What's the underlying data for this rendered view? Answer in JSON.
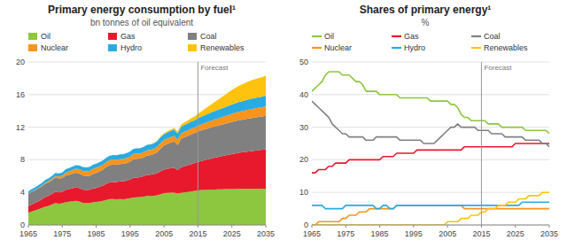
{
  "chart_data": [
    {
      "type": "area",
      "stacked": true,
      "title": "Primary energy consumption by fuel¹",
      "subtitle": "bn tonnes of oil equivalent",
      "x": [
        1965,
        1966,
        1967,
        1968,
        1969,
        1970,
        1971,
        1972,
        1973,
        1974,
        1975,
        1976,
        1977,
        1978,
        1979,
        1980,
        1981,
        1982,
        1983,
        1984,
        1985,
        1986,
        1987,
        1988,
        1989,
        1990,
        1991,
        1992,
        1993,
        1994,
        1995,
        1996,
        1997,
        1998,
        1999,
        2000,
        2001,
        2002,
        2003,
        2004,
        2005,
        2006,
        2007,
        2008,
        2009,
        2010,
        2011,
        2012,
        2013,
        2014,
        2015,
        2016,
        2017,
        2018,
        2019,
        2020,
        2021,
        2022,
        2023,
        2024,
        2025,
        2026,
        2027,
        2028,
        2029,
        2030,
        2031,
        2032,
        2033,
        2034,
        2035
      ],
      "series": [
        {
          "name": "Oil",
          "color": "#8dc63f",
          "values": [
            1.5,
            1.65,
            1.78,
            1.92,
            2.08,
            2.25,
            2.35,
            2.52,
            2.68,
            2.6,
            2.65,
            2.8,
            2.85,
            2.9,
            2.95,
            2.88,
            2.72,
            2.68,
            2.7,
            2.78,
            2.82,
            2.88,
            2.95,
            3.08,
            3.18,
            3.18,
            3.15,
            3.18,
            3.16,
            3.22,
            3.28,
            3.38,
            3.4,
            3.42,
            3.48,
            3.56,
            3.55,
            3.58,
            3.65,
            3.78,
            3.9,
            3.95,
            3.98,
            3.98,
            3.85,
            3.95,
            4.0,
            4.05,
            4.1,
            4.18,
            4.25,
            4.28,
            4.3,
            4.32,
            4.34,
            4.36,
            4.37,
            4.38,
            4.39,
            4.4,
            4.4,
            4.41,
            4.42,
            4.42,
            4.43,
            4.43,
            4.43,
            4.44,
            4.44,
            4.44,
            4.45
          ]
        },
        {
          "name": "Gas",
          "color": "#e8192c",
          "values": [
            0.82,
            0.88,
            0.94,
            1.0,
            1.08,
            1.18,
            1.25,
            1.32,
            1.4,
            1.4,
            1.42,
            1.52,
            1.55,
            1.6,
            1.65,
            1.65,
            1.62,
            1.6,
            1.62,
            1.68,
            1.72,
            1.8,
            1.88,
            1.98,
            2.05,
            2.08,
            2.12,
            2.16,
            2.18,
            2.22,
            2.28,
            2.4,
            2.42,
            2.44,
            2.52,
            2.58,
            2.62,
            2.68,
            2.72,
            2.82,
            2.9,
            2.95,
            2.98,
            3.02,
            2.9,
            3.15,
            3.2,
            3.28,
            3.35,
            3.42,
            3.5,
            3.58,
            3.66,
            3.74,
            3.82,
            3.9,
            3.98,
            4.06,
            4.14,
            4.22,
            4.3,
            4.38,
            4.45,
            4.5,
            4.55,
            4.6,
            4.65,
            4.7,
            4.75,
            4.8,
            4.85
          ]
        },
        {
          "name": "Coal",
          "color": "#808080",
          "values": [
            1.52,
            1.55,
            1.55,
            1.58,
            1.6,
            1.65,
            1.65,
            1.68,
            1.75,
            1.72,
            1.68,
            1.75,
            1.75,
            1.78,
            1.8,
            1.8,
            1.75,
            1.72,
            1.72,
            1.8,
            1.85,
            1.9,
            1.95,
            2.05,
            2.1,
            2.15,
            2.1,
            2.12,
            2.15,
            2.18,
            2.22,
            2.3,
            2.3,
            2.28,
            2.3,
            2.38,
            2.4,
            2.45,
            2.58,
            2.78,
            2.95,
            3.05,
            3.15,
            3.25,
            3.05,
            3.45,
            3.55,
            3.6,
            3.68,
            3.68,
            3.72,
            3.75,
            3.78,
            3.8,
            3.82,
            3.84,
            3.86,
            3.88,
            3.9,
            3.92,
            3.94,
            3.96,
            3.98,
            4.0,
            4.02,
            4.04,
            4.05,
            4.06,
            4.07,
            4.08,
            4.1
          ]
        },
        {
          "name": "Nuclear",
          "color": "#f7941d",
          "values": [
            0.01,
            0.02,
            0.04,
            0.06,
            0.08,
            0.1,
            0.12,
            0.15,
            0.18,
            0.22,
            0.28,
            0.35,
            0.4,
            0.45,
            0.5,
            0.52,
            0.55,
            0.58,
            0.6,
            0.62,
            0.62,
            0.62,
            0.62,
            0.62,
            0.62,
            0.62,
            0.62,
            0.62,
            0.62,
            0.62,
            0.62,
            0.65,
            0.65,
            0.65,
            0.65,
            0.65,
            0.65,
            0.65,
            0.65,
            0.68,
            0.68,
            0.68,
            0.68,
            0.68,
            0.65,
            0.68,
            0.68,
            0.68,
            0.68,
            0.68,
            0.7,
            0.73,
            0.76,
            0.79,
            0.82,
            0.85,
            0.88,
            0.9,
            0.93,
            0.96,
            0.99,
            1.02,
            1.04,
            1.06,
            1.08,
            1.1,
            1.12,
            1.13,
            1.14,
            1.15,
            1.16
          ]
        },
        {
          "name": "Hydro",
          "color": "#29abe2",
          "values": [
            0.28,
            0.3,
            0.31,
            0.32,
            0.33,
            0.35,
            0.36,
            0.37,
            0.38,
            0.38,
            0.4,
            0.42,
            0.43,
            0.44,
            0.45,
            0.46,
            0.47,
            0.48,
            0.49,
            0.5,
            0.51,
            0.52,
            0.53,
            0.54,
            0.55,
            0.56,
            0.57,
            0.58,
            0.58,
            0.6,
            0.61,
            0.62,
            0.63,
            0.64,
            0.65,
            0.66,
            0.67,
            0.68,
            0.7,
            0.72,
            0.72,
            0.74,
            0.76,
            0.78,
            0.78,
            0.82,
            0.84,
            0.86,
            0.88,
            0.9,
            0.92,
            0.95,
            0.98,
            1.0,
            1.02,
            1.04,
            1.06,
            1.08,
            1.1,
            1.12,
            1.14,
            1.16,
            1.18,
            1.2,
            1.22,
            1.24,
            1.26,
            1.27,
            1.28,
            1.29,
            1.3
          ]
        },
        {
          "name": "Renewables",
          "color": "#ffc20e",
          "values": [
            0.0,
            0.0,
            0.0,
            0.0,
            0.0,
            0.0,
            0.0,
            0.0,
            0.0,
            0.0,
            0.0,
            0.0,
            0.0,
            0.0,
            0.0,
            0.0,
            0.0,
            0.0,
            0.0,
            0.0,
            0.0,
            0.0,
            0.0,
            0.0,
            0.0,
            0.0,
            0.0,
            0.0,
            0.0,
            0.0,
            0.0,
            0.0,
            0.0,
            0.0,
            0.0,
            0.02,
            0.03,
            0.04,
            0.06,
            0.08,
            0.1,
            0.12,
            0.15,
            0.18,
            0.2,
            0.25,
            0.3,
            0.35,
            0.4,
            0.45,
            0.55,
            0.65,
            0.75,
            0.88,
            1.0,
            1.12,
            1.25,
            1.38,
            1.52,
            1.65,
            1.8,
            1.9,
            2.0,
            2.08,
            2.15,
            2.22,
            2.28,
            2.32,
            2.36,
            2.4,
            2.45
          ]
        }
      ],
      "xlim": [
        1965,
        2035
      ],
      "xticks": [
        1965,
        1975,
        1985,
        1995,
        2005,
        2015,
        2025,
        2035
      ],
      "ylim": [
        0,
        20
      ],
      "yticks": [
        0,
        4,
        8,
        12,
        16,
        20
      ],
      "grid": true,
      "legend": "top",
      "annotations": [
        {
          "text": "Forecast",
          "x": 2015
        }
      ]
    },
    {
      "type": "line",
      "title": "Shares of primary energy¹",
      "subtitle": "%",
      "x": [
        1965,
        1966,
        1967,
        1968,
        1969,
        1970,
        1971,
        1972,
        1973,
        1974,
        1975,
        1976,
        1977,
        1978,
        1979,
        1980,
        1981,
        1982,
        1983,
        1984,
        1985,
        1986,
        1987,
        1988,
        1989,
        1990,
        1991,
        1992,
        1993,
        1994,
        1995,
        1996,
        1997,
        1998,
        1999,
        2000,
        2001,
        2002,
        2003,
        2004,
        2005,
        2006,
        2007,
        2008,
        2009,
        2010,
        2011,
        2012,
        2013,
        2014,
        2015,
        2016,
        2017,
        2018,
        2019,
        2020,
        2021,
        2022,
        2023,
        2024,
        2025,
        2026,
        2027,
        2028,
        2029,
        2030,
        2031,
        2032,
        2033,
        2034,
        2035
      ],
      "series": [
        {
          "name": "Oil",
          "color": "#8dc63f",
          "values": [
            41,
            42,
            43,
            44,
            46,
            47,
            47,
            47,
            47,
            46,
            46,
            46,
            45,
            44,
            44,
            43,
            41,
            41,
            41,
            41,
            40,
            40,
            40,
            40,
            40,
            40,
            39,
            39,
            39,
            39,
            39,
            39,
            39,
            39,
            39,
            38,
            38,
            38,
            38,
            38,
            38,
            37,
            37,
            36,
            34,
            33,
            33,
            32,
            32,
            32,
            32,
            32,
            31,
            31,
            31,
            31,
            30,
            30,
            30,
            30,
            30,
            30,
            30,
            29,
            29,
            29,
            29,
            29,
            29,
            29,
            28
          ]
        },
        {
          "name": "Gas",
          "color": "#e8192c",
          "values": [
            16,
            16,
            17,
            17,
            17,
            18,
            18,
            19,
            19,
            19,
            19,
            20,
            20,
            20,
            20,
            20,
            20,
            20,
            20,
            20,
            20,
            21,
            21,
            21,
            21,
            22,
            22,
            22,
            22,
            22,
            22,
            23,
            23,
            23,
            23,
            23,
            23,
            23,
            23,
            23,
            23,
            23,
            23,
            23,
            23,
            24,
            24,
            24,
            24,
            24,
            24,
            24,
            24,
            24,
            24,
            24,
            24,
            24,
            24,
            24,
            25,
            25,
            25,
            25,
            25,
            25,
            25,
            25,
            25,
            25,
            25
          ]
        },
        {
          "name": "Coal",
          "color": "#808080",
          "values": [
            38,
            37,
            36,
            35,
            34,
            33,
            31,
            30,
            29,
            28,
            28,
            27,
            27,
            27,
            27,
            27,
            26,
            26,
            26,
            27,
            27,
            27,
            27,
            27,
            27,
            27,
            26,
            26,
            26,
            26,
            26,
            26,
            26,
            25,
            25,
            25,
            25,
            26,
            27,
            28,
            29,
            30,
            30,
            31,
            30,
            30,
            30,
            30,
            30,
            29,
            29,
            29,
            29,
            28,
            28,
            28,
            28,
            27,
            27,
            27,
            27,
            27,
            27,
            26,
            26,
            26,
            26,
            26,
            25,
            25,
            24
          ]
        },
        {
          "name": "Nuclear",
          "color": "#f7941d",
          "values": [
            0,
            0,
            1,
            1,
            1,
            1,
            1,
            1,
            1,
            2,
            2,
            3,
            3,
            3,
            4,
            4,
            4,
            5,
            5,
            5,
            5,
            5,
            5,
            5,
            5,
            6,
            6,
            6,
            6,
            6,
            6,
            6,
            6,
            6,
            6,
            6,
            6,
            6,
            6,
            6,
            6,
            6,
            6,
            6,
            6,
            5,
            5,
            5,
            5,
            5,
            5,
            5,
            5,
            5,
            5,
            5,
            5,
            5,
            5,
            5,
            5,
            5,
            5,
            5,
            5,
            5,
            5,
            5,
            5,
            5,
            5
          ]
        },
        {
          "name": "Hydro",
          "color": "#29abe2",
          "values": [
            6,
            6,
            6,
            6,
            5,
            5,
            5,
            5,
            5,
            5,
            6,
            6,
            6,
            6,
            6,
            6,
            6,
            6,
            6,
            5,
            5,
            6,
            6,
            5,
            5,
            6,
            6,
            6,
            6,
            6,
            6,
            6,
            6,
            6,
            6,
            6,
            6,
            6,
            6,
            6,
            6,
            6,
            6,
            6,
            6,
            6,
            6,
            6,
            6,
            6,
            6,
            6,
            6,
            6,
            6,
            6,
            6,
            6,
            6,
            6,
            6,
            6,
            7,
            7,
            7,
            7,
            7,
            7,
            7,
            7,
            7
          ]
        },
        {
          "name": "Renewables",
          "color": "#ffc20e",
          "values": [
            0,
            0,
            0,
            0,
            0,
            0,
            0,
            0,
            0,
            0,
            0,
            0,
            0,
            0,
            0,
            0,
            0,
            0,
            0,
            0,
            0,
            0,
            0,
            0,
            0,
            0,
            0,
            0,
            0,
            0,
            0,
            0,
            0,
            0,
            0,
            0,
            0,
            0,
            0,
            0,
            1,
            1,
            1,
            1,
            2,
            2,
            2,
            3,
            3,
            3,
            4,
            4,
            5,
            5,
            5,
            6,
            6,
            6,
            7,
            7,
            7,
            8,
            8,
            8,
            9,
            9,
            9,
            9,
            10,
            10,
            10
          ]
        }
      ],
      "xlim": [
        1965,
        2035
      ],
      "xticks": [
        1965,
        1975,
        1985,
        1995,
        2005,
        2015,
        2025,
        2035
      ],
      "ylim": [
        0,
        50
      ],
      "yticks": [
        0,
        10,
        20,
        30,
        40,
        50
      ],
      "grid": true,
      "legend": "top",
      "annotations": [
        {
          "text": "Forecast",
          "x": 2015
        }
      ]
    }
  ]
}
